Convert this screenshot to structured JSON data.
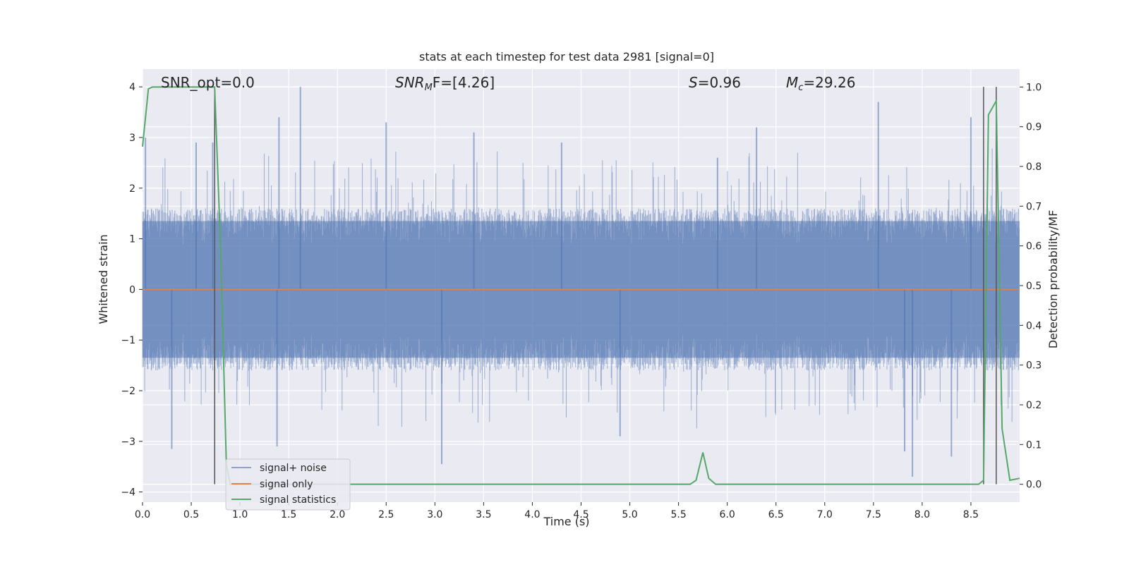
{
  "chart_data": {
    "type": "line",
    "title": "stats at each timestep for test data 2981 [signal=0]",
    "xlabel": "Time (s)",
    "ylabel_left": "Whitened strain",
    "ylabel_right": "Detection probability/MF",
    "xlim": [
      0.0,
      9.0
    ],
    "ylim_left": [
      -4.2,
      4.35
    ],
    "ylim_right": [
      -0.045,
      1.045
    ],
    "x_ticks": [
      0.0,
      0.5,
      1.0,
      1.5,
      2.0,
      2.5,
      3.0,
      3.5,
      4.0,
      4.5,
      5.0,
      5.5,
      6.0,
      6.5,
      7.0,
      7.5,
      8.0,
      8.5
    ],
    "x_tick_labels": [
      "0.0",
      "0.5",
      "1.0",
      "1.5",
      "2.0",
      "2.5",
      "3.0",
      "3.5",
      "4.0",
      "4.5",
      "5.0",
      "5.5",
      "6.0",
      "6.5",
      "7.0",
      "7.5",
      "8.0",
      "8.5"
    ],
    "y_left_ticks": [
      4,
      3,
      2,
      1,
      0,
      -1,
      -2,
      -3,
      -4
    ],
    "y_left_tick_labels": [
      "4",
      "3",
      "2",
      "1",
      "0",
      "−1",
      "−2",
      "−3",
      "−4"
    ],
    "y_right_ticks": [
      1.0,
      0.9,
      0.8,
      0.7,
      0.6,
      0.5,
      0.4,
      0.3,
      0.2,
      0.1,
      0.0
    ],
    "y_right_tick_labels": [
      "1.0",
      "0.9",
      "0.8",
      "0.7",
      "0.6",
      "0.5",
      "0.4",
      "0.3",
      "0.2",
      "0.1",
      "0.0"
    ],
    "grid": true,
    "legend_position": "lower-left",
    "annotations": {
      "snr_opt": "SNR_opt=0.0",
      "snr_mf_base": "SNR",
      "snr_mf_sub": "M",
      "snr_mf_rest": "F=[4.26]",
      "s_var": "S",
      "s_val": "=0.96",
      "mc_base": "M",
      "mc_sub": "c",
      "mc_val": "=29.26"
    },
    "vertical_markers_x": [
      0.74,
      8.63,
      8.76
    ],
    "series": [
      {
        "name": "signal+ noise",
        "color": "#4c72b0",
        "axis": "left",
        "kind": "noise",
        "envelope_typical": 1.6,
        "envelope_max": 4.0,
        "peaks": [
          [
            0.03,
            3.0
          ],
          [
            0.55,
            2.9
          ],
          [
            0.72,
            2.9
          ],
          [
            1.4,
            3.4
          ],
          [
            1.62,
            4.0
          ],
          [
            2.5,
            3.3
          ],
          [
            3.4,
            3.1
          ],
          [
            4.3,
            2.9
          ],
          [
            5.9,
            2.6
          ],
          [
            6.3,
            3.2
          ],
          [
            7.55,
            3.7
          ],
          [
            8.5,
            3.4
          ],
          [
            0.3,
            -3.15
          ],
          [
            1.38,
            -3.1
          ],
          [
            3.07,
            -3.45
          ],
          [
            4.9,
            -2.9
          ],
          [
            7.9,
            -3.7
          ],
          [
            8.3,
            -3.3
          ],
          [
            7.82,
            -3.2
          ]
        ]
      },
      {
        "name": "signal only",
        "color": "#dd8452",
        "axis": "left",
        "x": [
          0.0,
          9.0
        ],
        "y": [
          0.0,
          0.0
        ]
      },
      {
        "name": "signal statistics",
        "color": "#55a868",
        "axis": "right",
        "x": [
          0.0,
          0.06,
          0.1,
          0.2,
          0.3,
          0.4,
          0.5,
          0.6,
          0.7,
          0.74,
          0.8,
          0.86,
          0.9,
          1.0,
          5.5,
          5.62,
          5.68,
          5.75,
          5.81,
          5.88,
          8.5,
          8.58,
          8.63,
          8.68,
          8.76,
          8.82,
          8.9,
          9.0
        ],
        "y": [
          0.85,
          0.995,
          1.0,
          1.0,
          1.0,
          1.0,
          1.0,
          1.0,
          1.0,
          1.0,
          0.6,
          0.05,
          0.0,
          0.0,
          0.0,
          0.0,
          0.01,
          0.08,
          0.015,
          0.0,
          0.0,
          0.0,
          0.01,
          0.93,
          0.965,
          0.14,
          0.01,
          0.015
        ]
      }
    ]
  }
}
